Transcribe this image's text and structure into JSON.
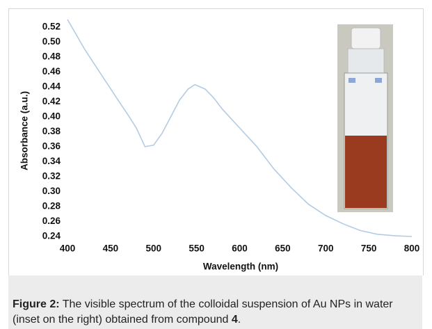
{
  "chart_data": {
    "type": "line",
    "x_label": "Wavelength (nm)",
    "y_label": "Absorbance (a.u.)",
    "x": [
      400,
      420,
      440,
      460,
      470,
      480,
      490,
      500,
      510,
      520,
      530,
      540,
      548,
      560,
      570,
      580,
      600,
      620,
      640,
      660,
      680,
      700,
      720,
      740,
      760,
      780,
      800
    ],
    "values": [
      0.53,
      0.49,
      0.455,
      0.42,
      0.403,
      0.385,
      0.36,
      0.362,
      0.378,
      0.4,
      0.422,
      0.437,
      0.443,
      0.437,
      0.425,
      0.41,
      0.385,
      0.36,
      0.33,
      0.305,
      0.283,
      0.268,
      0.257,
      0.248,
      0.243,
      0.241,
      0.24
    ],
    "color": "#b3cbe3",
    "xlim": [
      400,
      800
    ],
    "xticks": [
      400,
      450,
      500,
      550,
      600,
      650,
      700,
      750,
      800
    ],
    "ylim": [
      0.24,
      0.53
    ],
    "yticks": [
      0.24,
      0.26,
      0.28,
      {
        "value": 0.3,
        "label": "0.30"
      },
      0.32,
      0.34,
      0.36,
      0.38,
      {
        "value": 0.4,
        "label": "0.40"
      },
      0.42,
      0.44,
      0.46,
      0.48,
      {
        "value": 0.5,
        "label": "0.50"
      },
      0.52
    ]
  },
  "caption": {
    "label": "Figure 2:",
    "text": " The visible spectrum of the colloidal suspension of Au NPs in water (inset on the right) obtained from compound ",
    "compound": "4",
    "end": "."
  }
}
